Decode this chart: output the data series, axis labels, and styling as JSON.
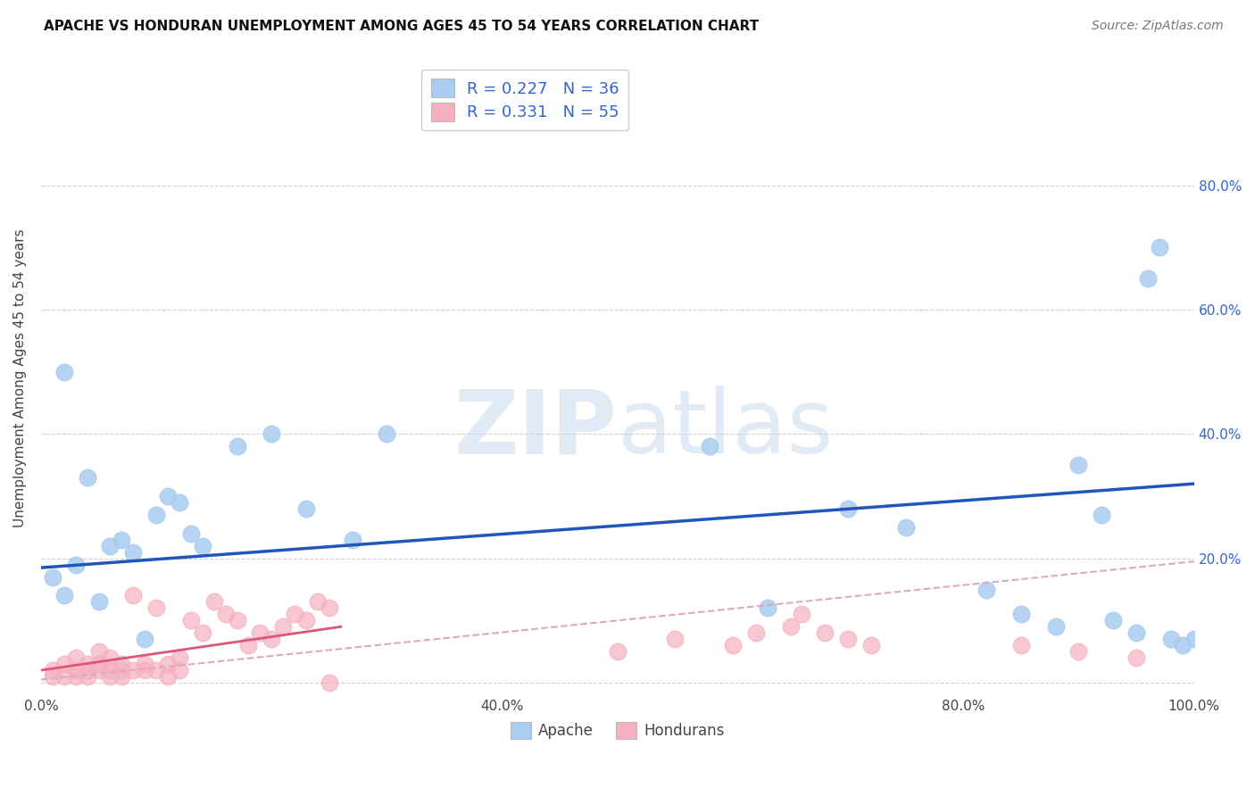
{
  "title": "APACHE VS HONDURAN UNEMPLOYMENT AMONG AGES 45 TO 54 YEARS CORRELATION CHART",
  "source": "Source: ZipAtlas.com",
  "ylabel": "Unemployment Among Ages 45 to 54 years",
  "xlim": [
    0,
    1.0
  ],
  "ylim": [
    -0.02,
    1.0
  ],
  "xticks": [
    0.0,
    0.2,
    0.4,
    0.6,
    0.8,
    1.0
  ],
  "xticklabels": [
    "0.0%",
    "",
    "40.0%",
    "",
    "80.0%",
    "100.0%"
  ],
  "yticks": [
    0.0,
    0.2,
    0.4,
    0.6,
    0.8
  ],
  "right_yticklabels": [
    "",
    "20.0%",
    "40.0%",
    "60.0%",
    "80.0%"
  ],
  "background_color": "#ffffff",
  "grid_color": "#d0d0d0",
  "apache_color": "#aaccf0",
  "honduran_color": "#f5b0c0",
  "apache_line_color": "#2255bb",
  "honduran_line_color": "#dd5577",
  "honduran_dash_color": "#ddaabb",
  "apache_R": 0.227,
  "apache_N": 36,
  "honduran_R": 0.331,
  "honduran_N": 55,
  "legend_text_color": "#3366cc",
  "apache_scatter_x": [
    0.01,
    0.02,
    0.02,
    0.03,
    0.04,
    0.05,
    0.06,
    0.07,
    0.08,
    0.09,
    0.1,
    0.11,
    0.12,
    0.13,
    0.14,
    0.17,
    0.2,
    0.23,
    0.27,
    0.3,
    0.58,
    0.63,
    0.7,
    0.75,
    0.82,
    0.85,
    0.88,
    0.9,
    0.92,
    0.93,
    0.95,
    0.96,
    0.97,
    0.98,
    0.99,
    1.0
  ],
  "apache_scatter_y": [
    0.17,
    0.14,
    0.5,
    0.19,
    0.33,
    0.13,
    0.22,
    0.23,
    0.21,
    0.07,
    0.27,
    0.3,
    0.29,
    0.24,
    0.22,
    0.38,
    0.4,
    0.28,
    0.23,
    0.4,
    0.38,
    0.12,
    0.28,
    0.25,
    0.15,
    0.11,
    0.09,
    0.35,
    0.27,
    0.1,
    0.08,
    0.65,
    0.7,
    0.07,
    0.06,
    0.07
  ],
  "honduran_scatter_x": [
    0.01,
    0.01,
    0.02,
    0.02,
    0.03,
    0.03,
    0.03,
    0.04,
    0.04,
    0.04,
    0.05,
    0.05,
    0.05,
    0.06,
    0.06,
    0.06,
    0.07,
    0.07,
    0.07,
    0.08,
    0.08,
    0.09,
    0.09,
    0.1,
    0.1,
    0.11,
    0.11,
    0.12,
    0.12,
    0.13,
    0.14,
    0.15,
    0.16,
    0.17,
    0.18,
    0.19,
    0.2,
    0.21,
    0.22,
    0.23,
    0.24,
    0.25,
    0.25,
    0.5,
    0.55,
    0.6,
    0.62,
    0.65,
    0.66,
    0.68,
    0.7,
    0.72,
    0.85,
    0.9,
    0.95
  ],
  "honduran_scatter_y": [
    0.02,
    0.01,
    0.01,
    0.03,
    0.02,
    0.04,
    0.01,
    0.02,
    0.01,
    0.03,
    0.02,
    0.03,
    0.05,
    0.01,
    0.02,
    0.04,
    0.02,
    0.03,
    0.01,
    0.02,
    0.14,
    0.03,
    0.02,
    0.02,
    0.12,
    0.01,
    0.03,
    0.02,
    0.04,
    0.1,
    0.08,
    0.13,
    0.11,
    0.1,
    0.06,
    0.08,
    0.07,
    0.09,
    0.11,
    0.1,
    0.13,
    0.12,
    0.0,
    0.05,
    0.07,
    0.06,
    0.08,
    0.09,
    0.11,
    0.08,
    0.07,
    0.06,
    0.06,
    0.05,
    0.04
  ],
  "apache_line_x": [
    0.0,
    1.0
  ],
  "apache_line_y": [
    0.185,
    0.32
  ],
  "honduran_solid_line_x": [
    0.0,
    0.26
  ],
  "honduran_solid_line_y": [
    0.02,
    0.09
  ],
  "honduran_dash_line_x": [
    0.0,
    1.0
  ],
  "honduran_dash_line_y": [
    0.005,
    0.195
  ],
  "watermark_text": "ZIPatlas",
  "watermark_color": "#c8d8ef",
  "watermark_zip_color": "#9bbbd8"
}
